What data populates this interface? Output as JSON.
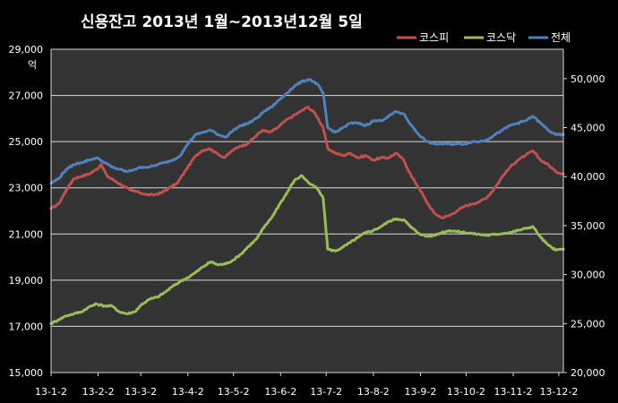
{
  "chart_data": {
    "type": "line",
    "title": "신용잔고  2013년 1월~2013년12월 5일",
    "left_axis": {
      "unit": "억",
      "ylim": [
        15000,
        29000
      ],
      "ticks": [
        15000,
        17000,
        19000,
        21000,
        23000,
        25000,
        27000,
        29000
      ],
      "tick_labels": [
        "15,000",
        "17,000",
        "19,000",
        "21,000",
        "23,000",
        "25,000",
        "27,000",
        "29,000"
      ]
    },
    "right_axis": {
      "ylim": [
        20000,
        53000
      ],
      "ticks": [
        20000,
        25000,
        30000,
        35000,
        40000,
        45000,
        50000
      ],
      "tick_labels": [
        "20,000",
        "25,000",
        "30,000",
        "35,000",
        "40,000",
        "45,000",
        "50,000"
      ]
    },
    "x_tick_labels": [
      "13-1-2",
      "13-2-2",
      "13-3-2",
      "13-4-2",
      "13-5-2",
      "13-6-2",
      "13-7-2",
      "13-8-2",
      "13-9-2",
      "13-10-2",
      "13-11-2",
      "13-12-2"
    ],
    "x_range": [
      "2013-01-02",
      "2013-12-05"
    ],
    "grid": true,
    "legend_position": "top-right",
    "colors": {
      "background": "#000000",
      "plot_area": "#333333",
      "gridline": "#d9d9d9",
      "text": "#ffffff"
    },
    "series": [
      {
        "name": "코스피",
        "axis": "left",
        "color": "#c0504d",
        "points": [
          [
            "2013-01-02",
            22100
          ],
          [
            "2013-01-07",
            22300
          ],
          [
            "2013-01-12",
            22900
          ],
          [
            "2013-01-17",
            23400
          ],
          [
            "2013-01-22",
            23500
          ],
          [
            "2013-01-27",
            23600
          ],
          [
            "2013-02-01",
            23800
          ],
          [
            "2013-02-04",
            24000
          ],
          [
            "2013-02-08",
            23500
          ],
          [
            "2013-02-13",
            23300
          ],
          [
            "2013-02-18",
            23100
          ],
          [
            "2013-02-23",
            22900
          ],
          [
            "2013-03-01",
            22800
          ],
          [
            "2013-03-06",
            22700
          ],
          [
            "2013-03-11",
            22700
          ],
          [
            "2013-03-16",
            22800
          ],
          [
            "2013-03-21",
            23000
          ],
          [
            "2013-03-26",
            23200
          ],
          [
            "2013-04-01",
            23800
          ],
          [
            "2013-04-06",
            24300
          ],
          [
            "2013-04-11",
            24600
          ],
          [
            "2013-04-16",
            24700
          ],
          [
            "2013-04-21",
            24500
          ],
          [
            "2013-04-26",
            24300
          ],
          [
            "2013-05-01",
            24600
          ],
          [
            "2013-05-06",
            24800
          ],
          [
            "2013-05-11",
            24900
          ],
          [
            "2013-05-16",
            25200
          ],
          [
            "2013-05-21",
            25500
          ],
          [
            "2013-05-26",
            25400
          ],
          [
            "2013-05-31",
            25600
          ],
          [
            "2013-06-05",
            25900
          ],
          [
            "2013-06-10",
            26100
          ],
          [
            "2013-06-15",
            26300
          ],
          [
            "2013-06-20",
            26500
          ],
          [
            "2013-06-25",
            26200
          ],
          [
            "2013-06-30",
            25600
          ],
          [
            "2013-07-03",
            24700
          ],
          [
            "2013-07-08",
            24500
          ],
          [
            "2013-07-13",
            24400
          ],
          [
            "2013-07-18",
            24500
          ],
          [
            "2013-07-23",
            24300
          ],
          [
            "2013-07-28",
            24400
          ],
          [
            "2013-08-02",
            24200
          ],
          [
            "2013-08-07",
            24300
          ],
          [
            "2013-08-12",
            24300
          ],
          [
            "2013-08-17",
            24500
          ],
          [
            "2013-08-22",
            24200
          ],
          [
            "2013-08-27",
            23500
          ],
          [
            "2013-09-01",
            23000
          ],
          [
            "2013-09-06",
            22400
          ],
          [
            "2013-09-11",
            21900
          ],
          [
            "2013-09-16",
            21700
          ],
          [
            "2013-09-21",
            21800
          ],
          [
            "2013-09-26",
            22000
          ],
          [
            "2013-10-01",
            22200
          ],
          [
            "2013-10-06",
            22300
          ],
          [
            "2013-10-11",
            22400
          ],
          [
            "2013-10-16",
            22600
          ],
          [
            "2013-10-21",
            23000
          ],
          [
            "2013-10-26",
            23500
          ],
          [
            "2013-10-31",
            23900
          ],
          [
            "2013-11-05",
            24200
          ],
          [
            "2013-11-10",
            24400
          ],
          [
            "2013-11-15",
            24600
          ],
          [
            "2013-11-20",
            24200
          ],
          [
            "2013-11-25",
            24000
          ],
          [
            "2013-11-30",
            23700
          ],
          [
            "2013-12-05",
            23600
          ]
        ]
      },
      {
        "name": "코스닥",
        "axis": "right",
        "color": "#9bbb59",
        "points": [
          [
            "2013-01-02",
            25000
          ],
          [
            "2013-01-07",
            25400
          ],
          [
            "2013-01-12",
            25800
          ],
          [
            "2013-01-17",
            26000
          ],
          [
            "2013-01-22",
            26200
          ],
          [
            "2013-01-27",
            26700
          ],
          [
            "2013-02-01",
            27000
          ],
          [
            "2013-02-06",
            26800
          ],
          [
            "2013-02-11",
            26800
          ],
          [
            "2013-02-16",
            26200
          ],
          [
            "2013-02-21",
            26000
          ],
          [
            "2013-02-26",
            26200
          ],
          [
            "2013-03-03",
            27000
          ],
          [
            "2013-03-08",
            27500
          ],
          [
            "2013-03-13",
            27700
          ],
          [
            "2013-03-18",
            28200
          ],
          [
            "2013-03-23",
            28800
          ],
          [
            "2013-03-28",
            29300
          ],
          [
            "2013-04-02",
            29700
          ],
          [
            "2013-04-07",
            30200
          ],
          [
            "2013-04-12",
            30800
          ],
          [
            "2013-04-17",
            31300
          ],
          [
            "2013-04-22",
            31000
          ],
          [
            "2013-04-27",
            31100
          ],
          [
            "2013-05-02",
            31500
          ],
          [
            "2013-05-07",
            32100
          ],
          [
            "2013-05-12",
            32900
          ],
          [
            "2013-05-17",
            33600
          ],
          [
            "2013-05-22",
            34800
          ],
          [
            "2013-05-27",
            35800
          ],
          [
            "2013-06-01",
            37100
          ],
          [
            "2013-06-06",
            38300
          ],
          [
            "2013-06-11",
            39600
          ],
          [
            "2013-06-16",
            40100
          ],
          [
            "2013-06-21",
            39300
          ],
          [
            "2013-06-26",
            38800
          ],
          [
            "2013-06-30",
            37800
          ],
          [
            "2013-07-03",
            32600
          ],
          [
            "2013-07-08",
            32400
          ],
          [
            "2013-07-13",
            32800
          ],
          [
            "2013-07-18",
            33300
          ],
          [
            "2013-07-23",
            33800
          ],
          [
            "2013-07-28",
            34300
          ],
          [
            "2013-08-02",
            34500
          ],
          [
            "2013-08-07",
            34900
          ],
          [
            "2013-08-12",
            35400
          ],
          [
            "2013-08-17",
            35700
          ],
          [
            "2013-08-22",
            35600
          ],
          [
            "2013-08-27",
            34800
          ],
          [
            "2013-09-01",
            34200
          ],
          [
            "2013-09-06",
            33900
          ],
          [
            "2013-09-11",
            34000
          ],
          [
            "2013-09-16",
            34300
          ],
          [
            "2013-09-21",
            34500
          ],
          [
            "2013-09-26",
            34400
          ],
          [
            "2013-10-01",
            34300
          ],
          [
            "2013-10-06",
            34200
          ],
          [
            "2013-10-11",
            34100
          ],
          [
            "2013-10-16",
            34000
          ],
          [
            "2013-10-21",
            34100
          ],
          [
            "2013-10-26",
            34200
          ],
          [
            "2013-10-31",
            34300
          ],
          [
            "2013-11-05",
            34500
          ],
          [
            "2013-11-10",
            34700
          ],
          [
            "2013-11-15",
            34900
          ],
          [
            "2013-11-20",
            33800
          ],
          [
            "2013-11-25",
            33000
          ],
          [
            "2013-11-30",
            32500
          ],
          [
            "2013-12-05",
            32600
          ]
        ]
      },
      {
        "name": "전체",
        "axis": "left",
        "color": "#4f81bd",
        "points": [
          [
            "2013-01-02",
            23200
          ],
          [
            "2013-01-07",
            23400
          ],
          [
            "2013-01-12",
            23800
          ],
          [
            "2013-01-17",
            24000
          ],
          [
            "2013-01-22",
            24100
          ],
          [
            "2013-01-27",
            24200
          ],
          [
            "2013-02-01",
            24300
          ],
          [
            "2013-02-06",
            24100
          ],
          [
            "2013-02-11",
            23900
          ],
          [
            "2013-02-16",
            23800
          ],
          [
            "2013-02-21",
            23700
          ],
          [
            "2013-02-26",
            23800
          ],
          [
            "2013-03-03",
            23900
          ],
          [
            "2013-03-08",
            23900
          ],
          [
            "2013-03-13",
            24000
          ],
          [
            "2013-03-18",
            24100
          ],
          [
            "2013-03-23",
            24200
          ],
          [
            "2013-03-28",
            24400
          ],
          [
            "2013-04-02",
            24900
          ],
          [
            "2013-04-07",
            25300
          ],
          [
            "2013-04-12",
            25400
          ],
          [
            "2013-04-17",
            25500
          ],
          [
            "2013-04-22",
            25300
          ],
          [
            "2013-04-27",
            25200
          ],
          [
            "2013-05-02",
            25500
          ],
          [
            "2013-05-07",
            25700
          ],
          [
            "2013-05-12",
            25800
          ],
          [
            "2013-05-17",
            26000
          ],
          [
            "2013-05-22",
            26300
          ],
          [
            "2013-05-27",
            26500
          ],
          [
            "2013-06-01",
            26800
          ],
          [
            "2013-06-06",
            27100
          ],
          [
            "2013-06-11",
            27400
          ],
          [
            "2013-06-16",
            27600
          ],
          [
            "2013-06-21",
            27700
          ],
          [
            "2013-06-26",
            27500
          ],
          [
            "2013-06-30",
            27100
          ],
          [
            "2013-07-03",
            25600
          ],
          [
            "2013-07-08",
            25400
          ],
          [
            "2013-07-13",
            25600
          ],
          [
            "2013-07-18",
            25800
          ],
          [
            "2013-07-23",
            25800
          ],
          [
            "2013-07-28",
            25700
          ],
          [
            "2013-08-02",
            25900
          ],
          [
            "2013-08-07",
            25900
          ],
          [
            "2013-08-12",
            26100
          ],
          [
            "2013-08-17",
            26300
          ],
          [
            "2013-08-22",
            26200
          ],
          [
            "2013-08-27",
            25700
          ],
          [
            "2013-09-01",
            25300
          ],
          [
            "2013-09-06",
            25000
          ],
          [
            "2013-09-11",
            24900
          ],
          [
            "2013-09-16",
            24900
          ],
          [
            "2013-09-21",
            24900
          ],
          [
            "2013-09-26",
            24900
          ],
          [
            "2013-10-01",
            24900
          ],
          [
            "2013-10-06",
            25000
          ],
          [
            "2013-10-11",
            25000
          ],
          [
            "2013-10-16",
            25100
          ],
          [
            "2013-10-21",
            25300
          ],
          [
            "2013-10-26",
            25500
          ],
          [
            "2013-10-31",
            25700
          ],
          [
            "2013-11-05",
            25800
          ],
          [
            "2013-11-10",
            25900
          ],
          [
            "2013-11-15",
            26100
          ],
          [
            "2013-11-20",
            25800
          ],
          [
            "2013-11-25",
            25500
          ],
          [
            "2013-11-30",
            25300
          ],
          [
            "2013-12-05",
            25300
          ]
        ]
      }
    ]
  }
}
